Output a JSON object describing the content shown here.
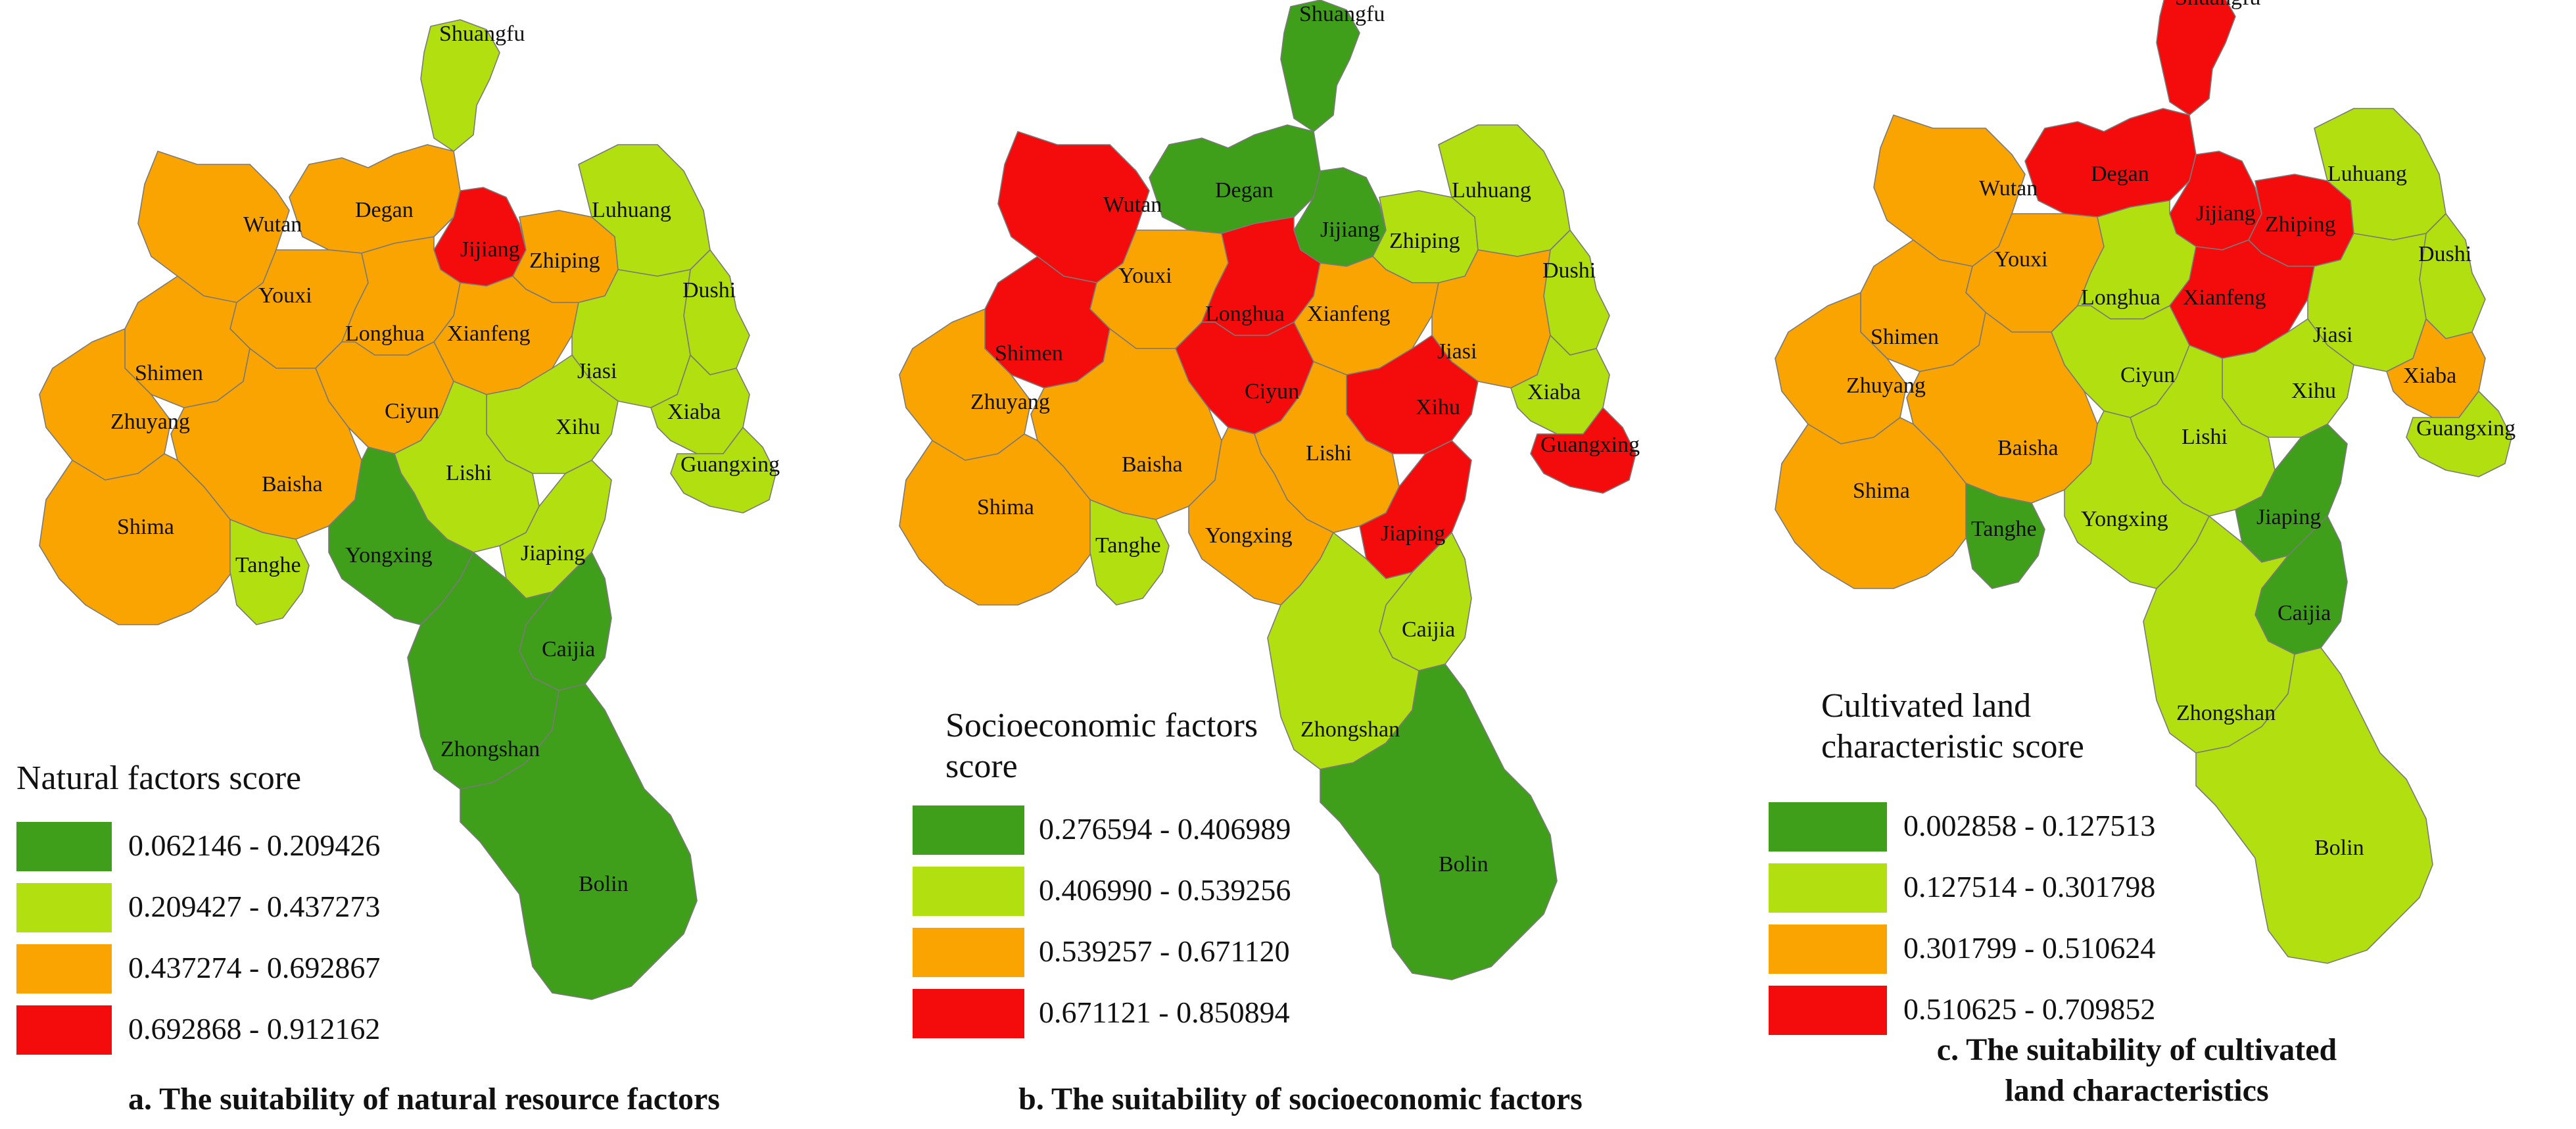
{
  "colors": {
    "green": "#3f9f1a",
    "lightgreen": "#b2df10",
    "orange": "#f9a400",
    "red": "#f40c0c"
  },
  "panels": [
    {
      "id": "a",
      "caption": "a. The suitability of natural resource factors",
      "legend_title": [
        "Natural factors score"
      ],
      "legend": [
        {
          "range": "0.062146 - 0.209426",
          "color": "#3f9f1a"
        },
        {
          "range": "0.209427 - 0.437273",
          "color": "#b2df10"
        },
        {
          "range": "0.437274 - 0.692867",
          "color": "#f9a400"
        },
        {
          "range": "0.692868 - 0.912162",
          "color": "#f40c0c"
        }
      ],
      "towns": {
        "Shuangfu": "#b2df10",
        "Wutan": "#f9a400",
        "Degan": "#f9a400",
        "Jijiang": "#f40c0c",
        "Zhiping": "#f9a400",
        "Luhuang": "#b2df10",
        "Youxi": "#f9a400",
        "Longhua": "#f9a400",
        "Xianfeng": "#f9a400",
        "Dushi": "#b2df10",
        "Shimen": "#f9a400",
        "Jiasi": "#b2df10",
        "Zhuyang": "#f9a400",
        "Ciyun": "#f9a400",
        "Xihu": "#b2df10",
        "Xiaba": "#b2df10",
        "Guangxing": "#b2df10",
        "Baisha": "#f9a400",
        "Lishi": "#b2df10",
        "Shima": "#f9a400",
        "Tanghe": "#b2df10",
        "Yongxing": "#3f9f1a",
        "Jiaping": "#b2df10",
        "Caijia": "#3f9f1a",
        "Zhongshan": "#3f9f1a",
        "Bolin": "#3f9f1a"
      }
    },
    {
      "id": "b",
      "caption": "b. The suitability of socioeconomic factors",
      "legend_title": [
        "Socioeconomic factors",
        "score"
      ],
      "legend": [
        {
          "range": "0.276594 - 0.406989",
          "color": "#3f9f1a"
        },
        {
          "range": "0.406990 - 0.539256",
          "color": "#b2df10"
        },
        {
          "range": "0.539257 - 0.671120",
          "color": "#f9a400"
        },
        {
          "range": "0.671121 - 0.850894",
          "color": "#f40c0c"
        }
      ],
      "towns": {
        "Shuangfu": "#3f9f1a",
        "Wutan": "#f40c0c",
        "Degan": "#3f9f1a",
        "Jijiang": "#3f9f1a",
        "Zhiping": "#b2df10",
        "Luhuang": "#b2df10",
        "Youxi": "#f9a400",
        "Longhua": "#f40c0c",
        "Xianfeng": "#f9a400",
        "Dushi": "#b2df10",
        "Shimen": "#f40c0c",
        "Jiasi": "#f9a400",
        "Zhuyang": "#f9a400",
        "Ciyun": "#f40c0c",
        "Xihu": "#f40c0c",
        "Xiaba": "#b2df10",
        "Guangxing": "#f40c0c",
        "Baisha": "#f9a400",
        "Lishi": "#f9a400",
        "Shima": "#f9a400",
        "Tanghe": "#b2df10",
        "Yongxing": "#f9a400",
        "Jiaping": "#f40c0c",
        "Caijia": "#b2df10",
        "Zhongshan": "#b2df10",
        "Bolin": "#3f9f1a"
      }
    },
    {
      "id": "c",
      "caption": "c. The suitability of cultivated",
      "caption2": "land characteristics",
      "legend_title": [
        "Cultivated land",
        "characteristic score"
      ],
      "legend": [
        {
          "range": "0.002858 - 0.127513",
          "color": "#3f9f1a"
        },
        {
          "range": "0.127514 - 0.301798",
          "color": "#b2df10"
        },
        {
          "range": "0.301799 - 0.510624",
          "color": "#f9a400"
        },
        {
          "range": "0.510625 - 0.709852",
          "color": "#f40c0c"
        }
      ],
      "towns": {
        "Shuangfu": "#f40c0c",
        "Wutan": "#f9a400",
        "Degan": "#f40c0c",
        "Jijiang": "#f40c0c",
        "Zhiping": "#f40c0c",
        "Luhuang": "#b2df10",
        "Youxi": "#f9a400",
        "Longhua": "#b2df10",
        "Xianfeng": "#f40c0c",
        "Dushi": "#b2df10",
        "Shimen": "#f9a400",
        "Jiasi": "#b2df10",
        "Zhuyang": "#f9a400",
        "Ciyun": "#b2df10",
        "Xihu": "#b2df10",
        "Xiaba": "#f9a400",
        "Guangxing": "#b2df10",
        "Baisha": "#f9a400",
        "Lishi": "#b2df10",
        "Shima": "#f9a400",
        "Tanghe": "#3f9f1a",
        "Yongxing": "#b2df10",
        "Jiaping": "#3f9f1a",
        "Caijia": "#3f9f1a",
        "Zhongshan": "#b2df10",
        "Bolin": "#b2df10"
      }
    }
  ]
}
